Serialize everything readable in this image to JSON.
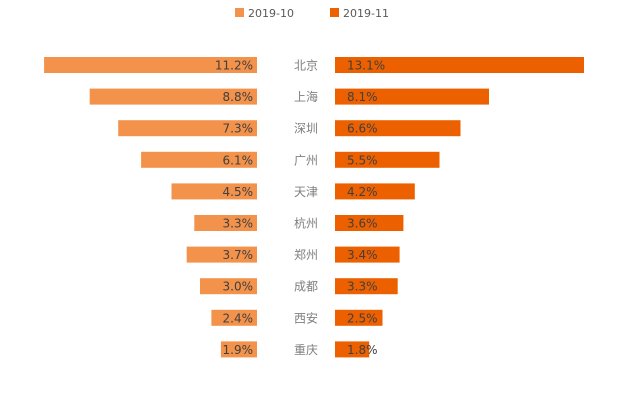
{
  "chart_data": {
    "type": "bar",
    "orientation": "horizontal-butterfly",
    "title": "",
    "xlabel": "",
    "ylabel": "",
    "unit": "%",
    "categories": [
      "北京",
      "上海",
      "深圳",
      "广州",
      "天津",
      "杭州",
      "郑州",
      "成都",
      "西安",
      "重庆"
    ],
    "series": [
      {
        "name": "2019-10",
        "color": "#f3924a",
        "side": "left",
        "values": [
          11.2,
          8.8,
          7.3,
          6.1,
          4.5,
          3.3,
          3.7,
          3.0,
          2.4,
          1.9
        ],
        "labels": [
          "11.2%",
          "8.8%",
          "7.3%",
          "6.1%",
          "4.5%",
          "3.3%",
          "3.7%",
          "3.0%",
          "2.4%",
          "1.9%"
        ]
      },
      {
        "name": "2019-11",
        "color": "#ec6000",
        "side": "right",
        "values": [
          13.1,
          8.1,
          6.6,
          5.5,
          4.2,
          3.6,
          3.4,
          3.3,
          2.5,
          1.8
        ],
        "labels": [
          "13.1%",
          "8.1%",
          "6.6%",
          "5.5%",
          "4.2%",
          "3.6%",
          "3.4%",
          "3.3%",
          "2.5%",
          "1.8%"
        ]
      }
    ],
    "legend": {
      "position": "top-center",
      "items": [
        {
          "label": "2019-10",
          "color": "#f3924a"
        },
        {
          "label": "2019-11",
          "color": "#ec6000"
        }
      ]
    },
    "grid": false
  }
}
